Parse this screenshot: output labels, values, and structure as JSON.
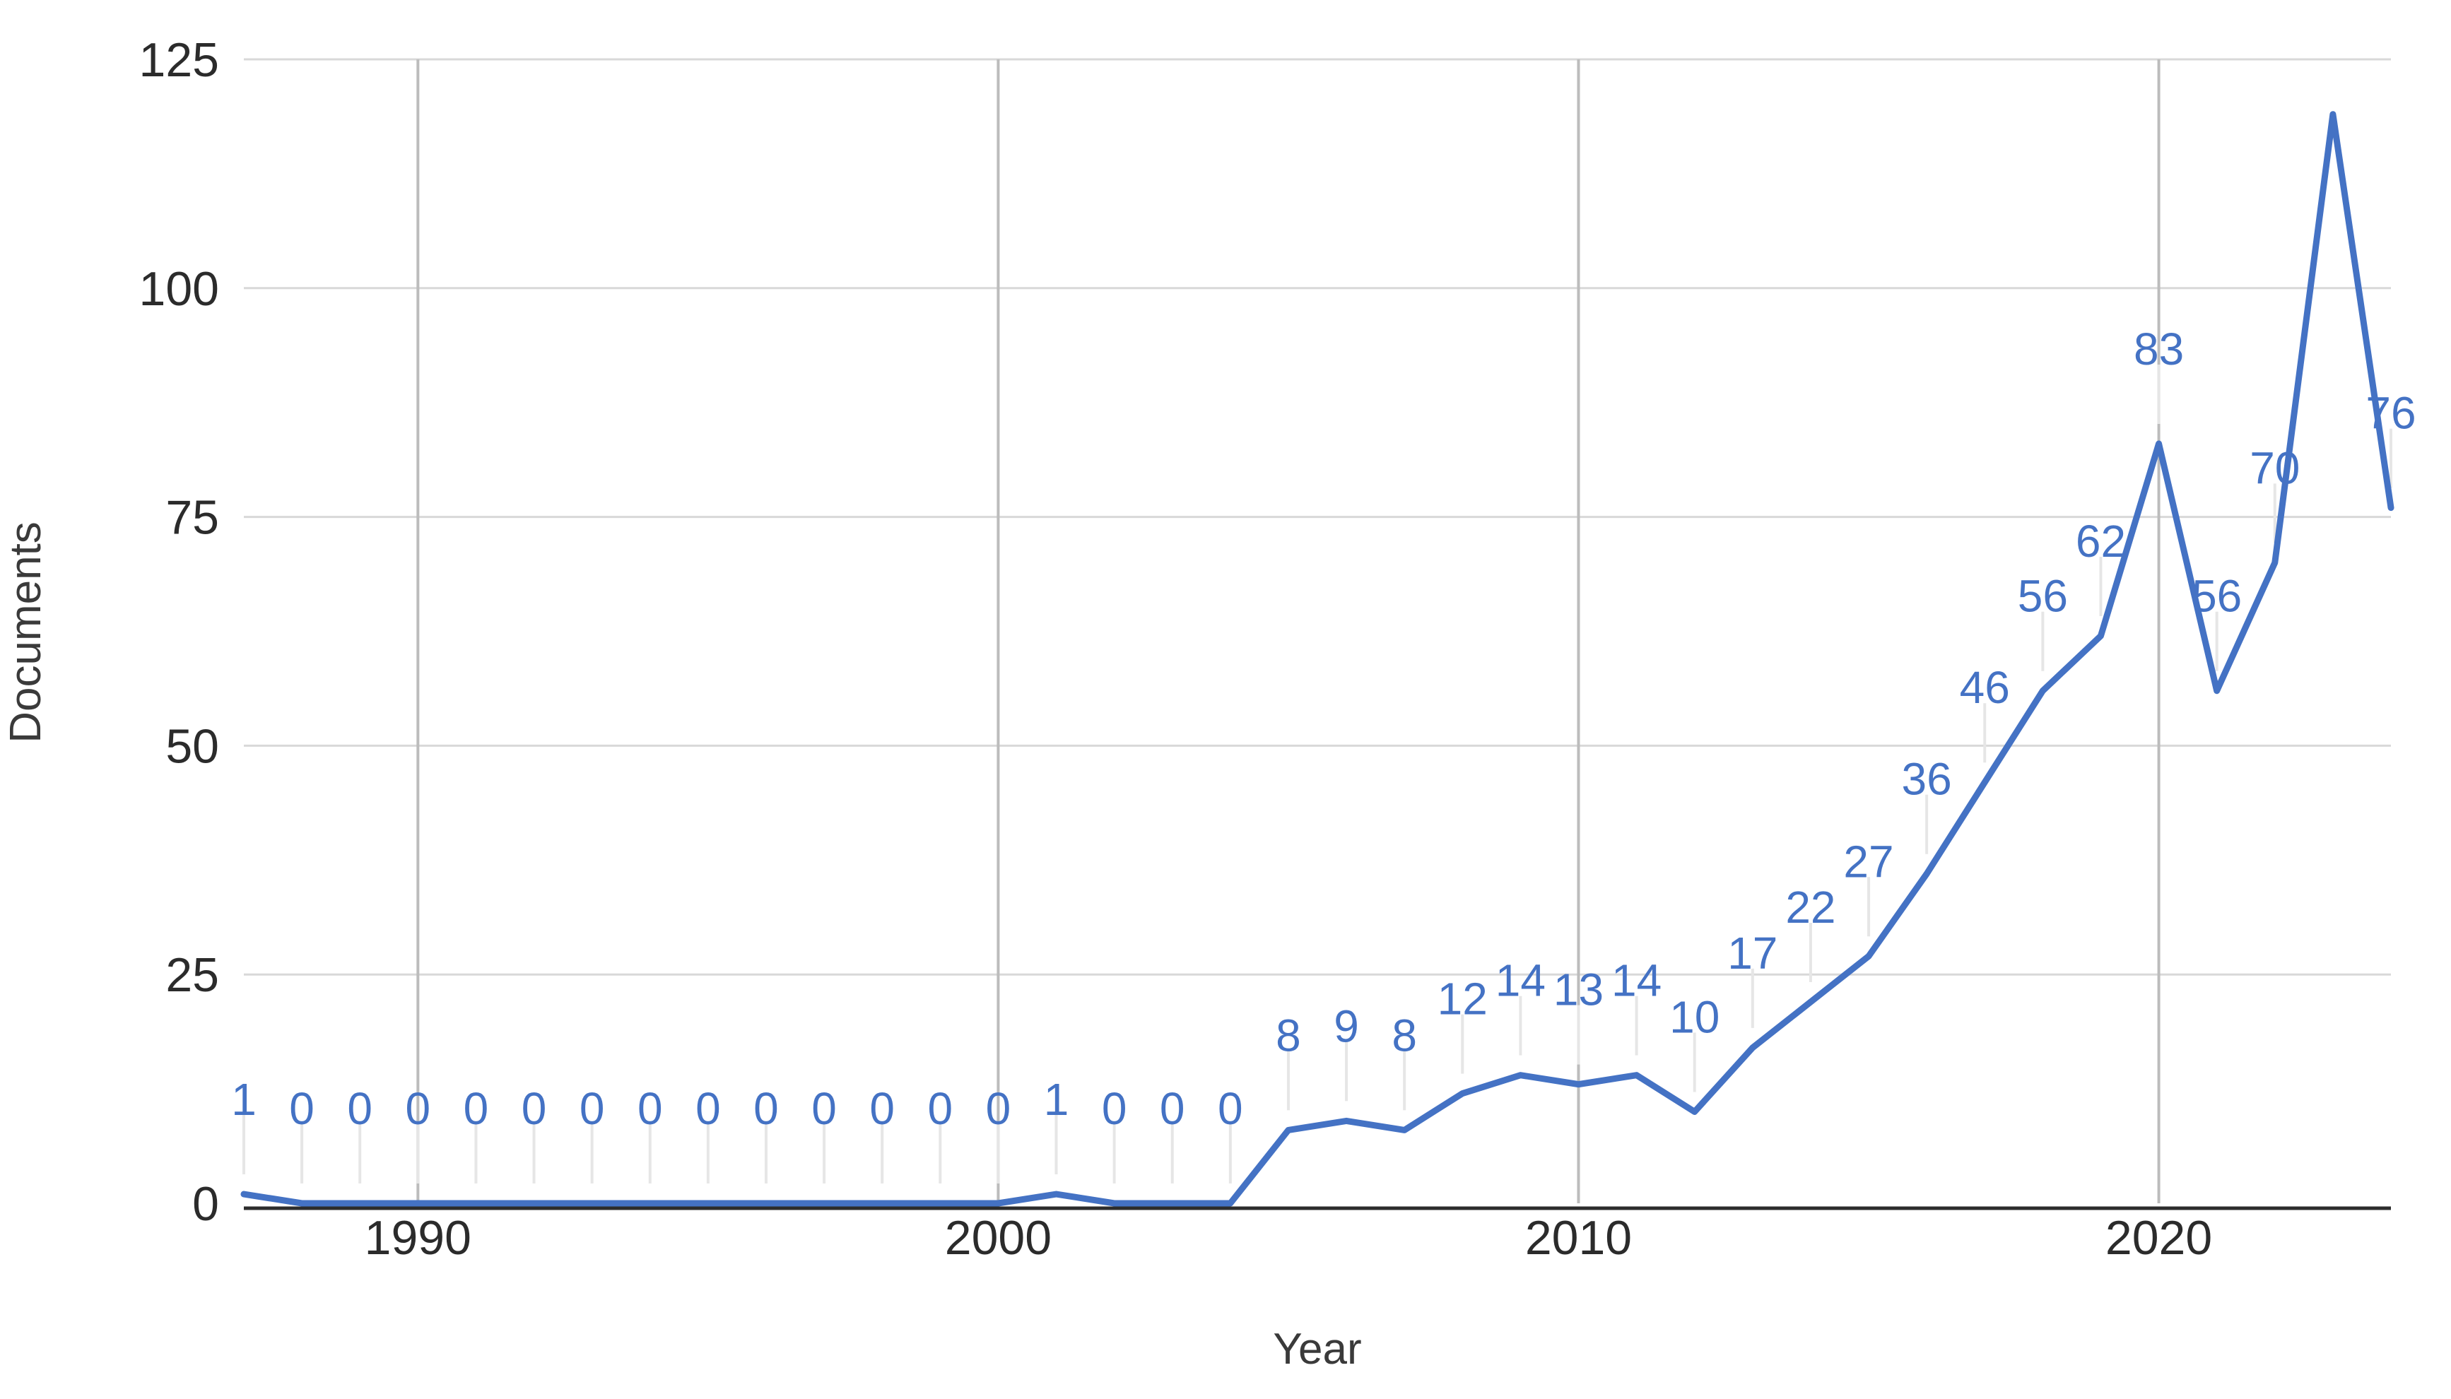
{
  "chart_data": {
    "type": "line",
    "title": "",
    "xlabel": "Year",
    "ylabel": "Documents",
    "series_name": "Documents",
    "x": [
      1987,
      1988,
      1989,
      1990,
      1991,
      1992,
      1993,
      1994,
      1995,
      1996,
      1997,
      1998,
      1999,
      2000,
      2001,
      2002,
      2003,
      2004,
      2005,
      2006,
      2007,
      2008,
      2009,
      2010,
      2011,
      2012,
      2013,
      2014,
      2015,
      2016,
      2017,
      2018,
      2019,
      2020,
      2021,
      2022,
      2023,
      2024
    ],
    "values": [
      1,
      0,
      0,
      0,
      0,
      0,
      0,
      0,
      0,
      0,
      0,
      0,
      0,
      0,
      1,
      0,
      0,
      0,
      8,
      9,
      8,
      12,
      14,
      13,
      14,
      10,
      17,
      22,
      27,
      36,
      46,
      56,
      62,
      83,
      56,
      70,
      119,
      76
    ],
    "hidden_label_years": [
      2023
    ],
    "x_ticks": [
      1990,
      2000,
      2010,
      2020
    ],
    "y_ticks": [
      0,
      25,
      50,
      75,
      100,
      125
    ],
    "xlim": [
      1987,
      2024
    ],
    "ylim": [
      0,
      125
    ],
    "grid": true,
    "legend_position": "none",
    "colors": {
      "line": "#4472C4",
      "data_label": "#4472C4",
      "tick_label": "#2b2b2b",
      "axis_title": "#3a3a3a",
      "h_gridline": "#d8d8d8",
      "v_gridline": "#bcbcbc",
      "label_stem": "#e6e6e6",
      "axis_line": "#2d2d2d"
    }
  }
}
